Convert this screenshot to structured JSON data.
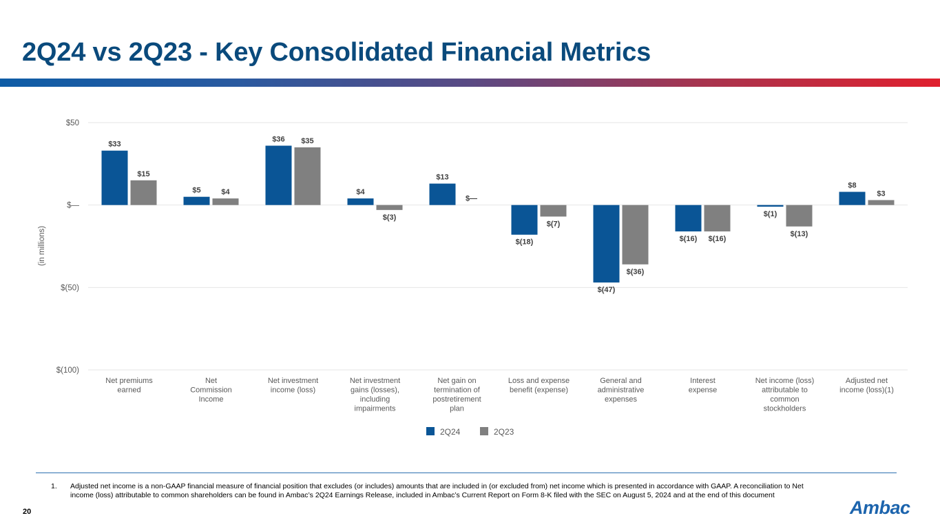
{
  "page": {
    "title": "2Q24 vs 2Q23 - Key Consolidated Financial Metrics",
    "page_number": "20",
    "logo_text": "Ambac",
    "footnote_number": "1.",
    "footnote_text": "Adjusted net income is a non-GAAP financial measure of financial position that excludes (or includes) amounts that are included in (or excluded from) net income which is presented in accordance with GAAP.  A reconciliation to Net income (loss) attributable to common shareholders can be found in Ambac’s 2Q24 Earnings Release, included in Ambac’s Current Report on Form 8-K filed with the SEC on August 5, 2024 and at the end of this document"
  },
  "colors": {
    "title": "#0a4a7c",
    "series_2q24": "#0a5596",
    "series_2q23": "#808080",
    "grid": "#e6e6e6",
    "tick_text": "#595959"
  },
  "chart_data": {
    "type": "bar",
    "ylabel": "(in millions)",
    "ylim": [
      -100,
      50
    ],
    "yticks": [
      50,
      0,
      -50,
      -100
    ],
    "ytick_labels": [
      "$50",
      "$—",
      "$(50)",
      "$(100)"
    ],
    "grid": true,
    "legend_position": "bottom",
    "categories": [
      [
        "Net premiums",
        "earned"
      ],
      [
        "Net",
        "Commission",
        "Income"
      ],
      [
        "Net investment",
        "income (loss)"
      ],
      [
        "Net investment",
        "gains (losses),",
        "including",
        "impairments"
      ],
      [
        "Net gain on",
        "termination of",
        "postretirement",
        "plan"
      ],
      [
        "Loss and expense",
        "benefit (expense)"
      ],
      [
        "General and",
        "administrative",
        "expenses"
      ],
      [
        "Interest",
        "expense"
      ],
      [
        "Net income (loss)",
        "attributable to",
        "common",
        "stockholders"
      ],
      [
        "Adjusted net",
        "income (loss)(1)"
      ]
    ],
    "series": [
      {
        "name": "2Q24",
        "values": [
          33,
          5,
          36,
          4,
          13,
          -18,
          -47,
          -16,
          -1,
          8
        ],
        "labels": [
          "$33",
          "$5",
          "$36",
          "$4",
          "$13",
          "$(18)",
          "$(47)",
          "$(16)",
          "$(1)",
          "$8"
        ]
      },
      {
        "name": "2Q23",
        "values": [
          15,
          4,
          35,
          -3,
          0,
          -7,
          -36,
          -16,
          -13,
          3
        ],
        "labels": [
          "$15",
          "$4",
          "$35",
          "$(3)",
          "$—",
          "$(7)",
          "$(36)",
          "$(16)",
          "$(13)",
          "$3"
        ]
      }
    ]
  }
}
